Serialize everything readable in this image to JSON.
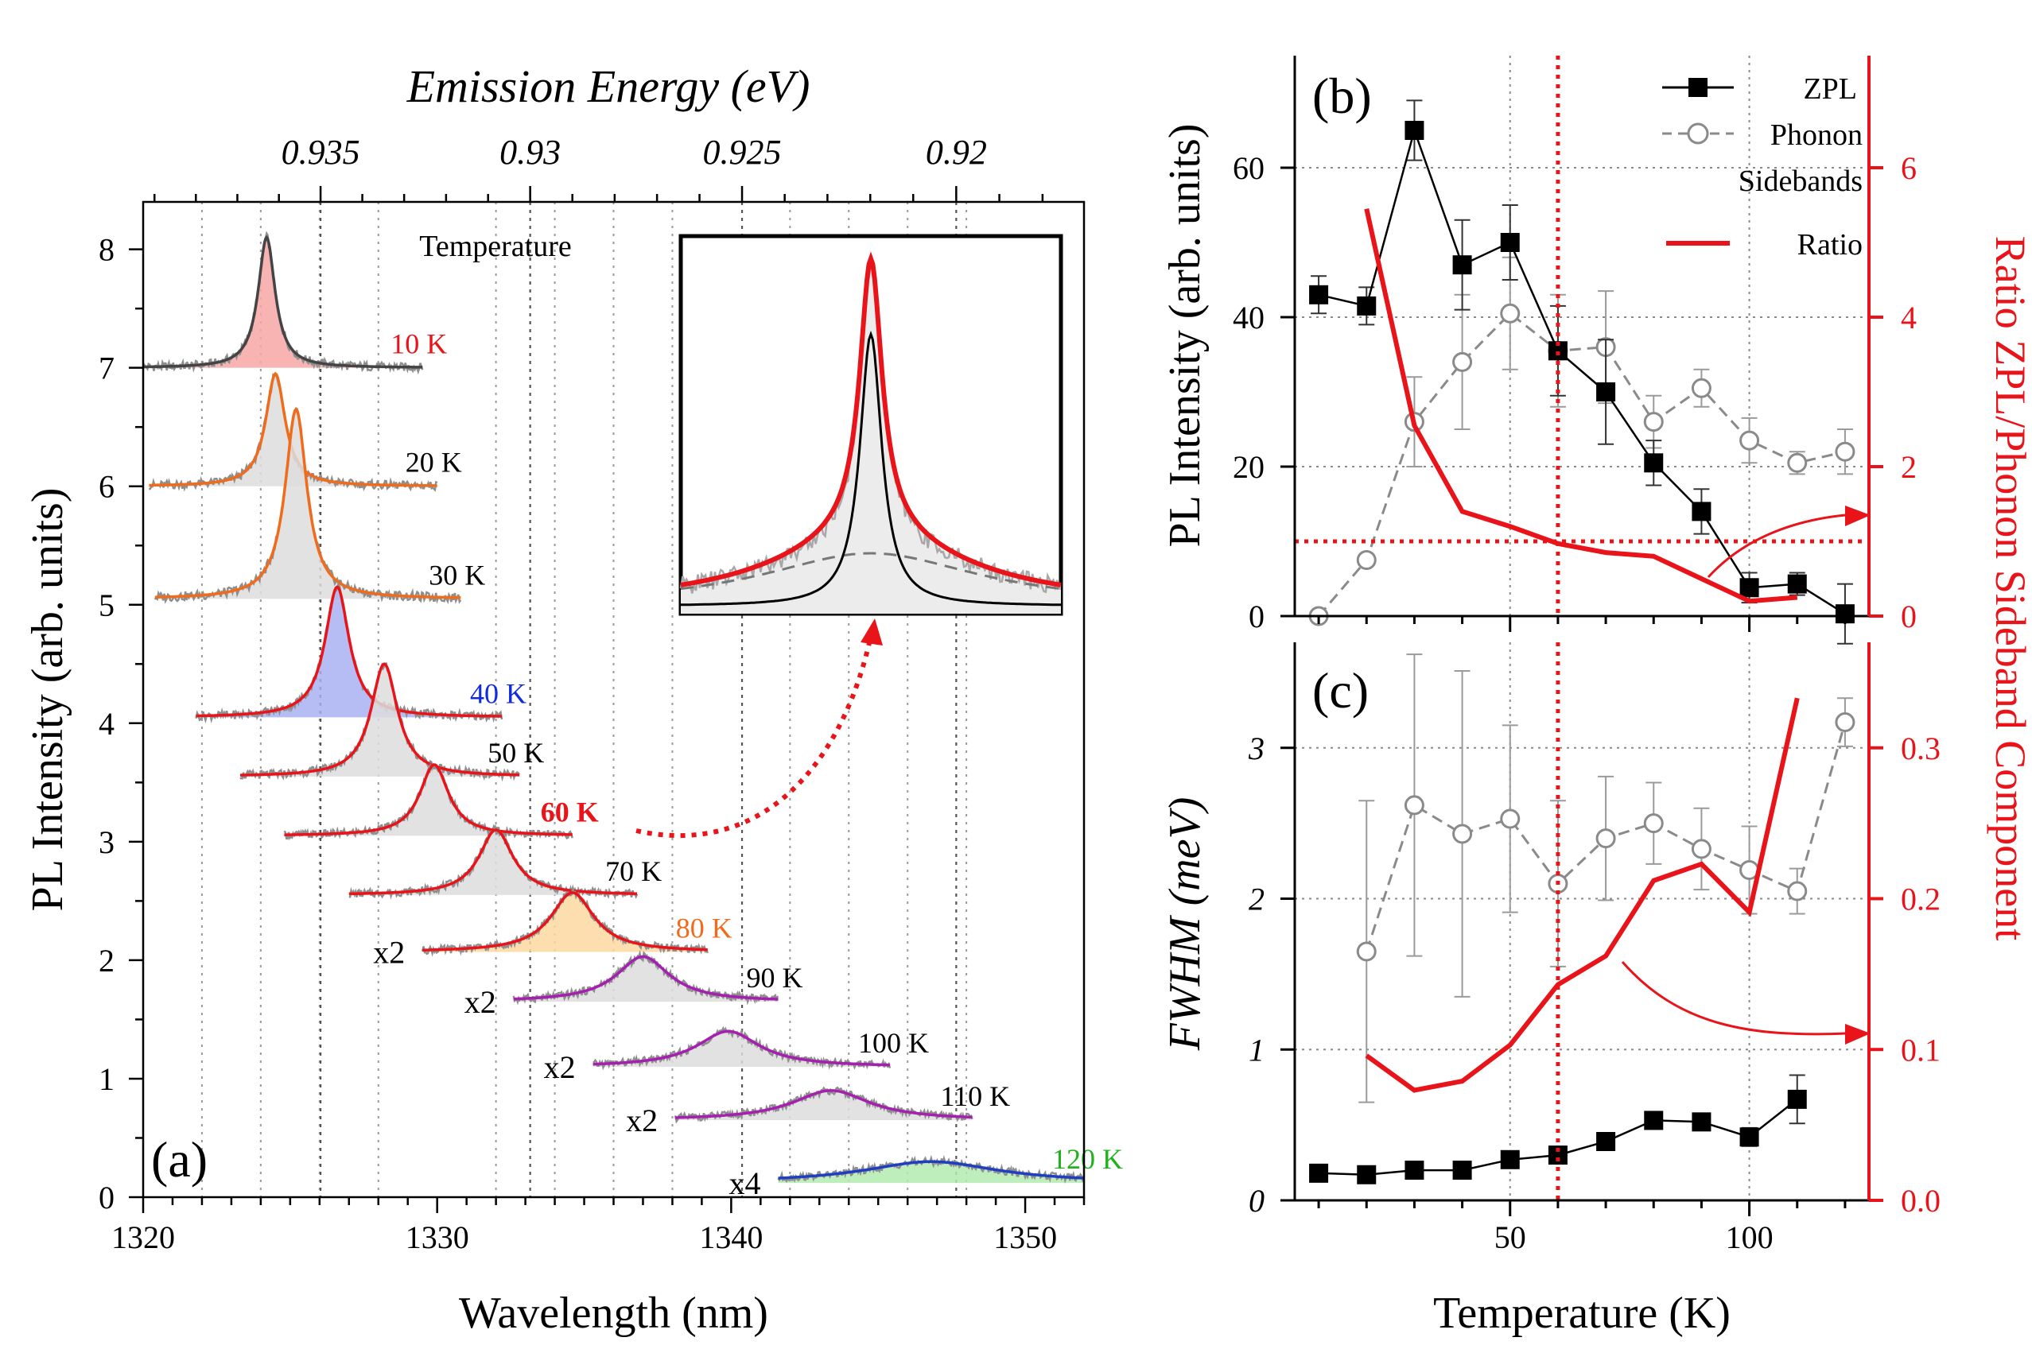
{
  "figure": {
    "note": "Three-panel photoluminescence figure"
  },
  "chart_data": [
    {
      "id": "a",
      "type": "line",
      "panel_label": "(a)",
      "xlabel": "Wavelength (nm)",
      "ylabel": "PL Intensity (arb. units)",
      "top_axis_label": "Emission Energy (eV)",
      "xlim": [
        1320,
        1352
      ],
      "ylim": [
        0,
        8.4
      ],
      "x_ticks": [
        1320,
        1330,
        1340,
        1350
      ],
      "y_ticks": [
        0,
        1,
        2,
        3,
        4,
        5,
        6,
        7,
        8
      ],
      "top_ticks": [
        "0.935",
        "0.93",
        "0.925",
        "0.92"
      ],
      "top_tick_values": [
        0.935,
        0.93,
        0.925,
        0.92
      ],
      "legend_title": "Temperature",
      "spectra": [
        {
          "label": "10 K",
          "scale": "",
          "baseline": 7.0,
          "center": 1324.2,
          "amplitude": 1.1,
          "width": 0.35,
          "x_start": 1320,
          "x_end": 1329.5,
          "color": "#444444",
          "label_color": "#e8141a",
          "fill": "#f6a7a4"
        },
        {
          "label": "20 K",
          "scale": "",
          "baseline": 6.0,
          "center": 1324.5,
          "amplitude": 0.95,
          "width": 0.4,
          "x_start": 1320.2,
          "x_end": 1330,
          "color": "#ef6c1d",
          "label_color": "#000000",
          "fill": "#dddddd"
        },
        {
          "label": "30 K",
          "scale": "",
          "baseline": 5.05,
          "center": 1325.2,
          "amplitude": 1.6,
          "width": 0.45,
          "x_start": 1320.4,
          "x_end": 1330.8,
          "color": "#ef6c1d",
          "label_color": "#000000",
          "fill": "#dddddd"
        },
        {
          "label": "40 K",
          "scale": "",
          "baseline": 4.05,
          "center": 1326.6,
          "amplitude": 1.1,
          "width": 0.5,
          "x_start": 1321.8,
          "x_end": 1332.2,
          "color": "#e8141a",
          "label_color": "#0f2adf",
          "fill": "#a9b2f3"
        },
        {
          "label": "50 K",
          "scale": "",
          "baseline": 3.55,
          "center": 1328.2,
          "amplitude": 0.95,
          "width": 0.55,
          "x_start": 1323.3,
          "x_end": 1332.8,
          "color": "#e8141a",
          "label_color": "#000000",
          "fill": "#dddddd"
        },
        {
          "label": "60 K",
          "scale": "",
          "baseline": 3.05,
          "center": 1329.9,
          "amplitude": 0.6,
          "width": 0.6,
          "x_start": 1324.8,
          "x_end": 1334.6,
          "color": "#e8141a",
          "label_color": "#e8141a",
          "fill": "#dddddd",
          "bold": true
        },
        {
          "label": "70 K",
          "scale": "",
          "baseline": 2.55,
          "center": 1332.0,
          "amplitude": 0.55,
          "width": 0.7,
          "x_start": 1327.0,
          "x_end": 1336.8,
          "color": "#e8141a",
          "label_color": "#000000",
          "fill": "#dddddd"
        },
        {
          "label": "80 K",
          "scale": "x2",
          "baseline": 2.07,
          "center": 1334.6,
          "amplitude": 0.5,
          "width": 0.9,
          "x_start": 1329.5,
          "x_end": 1339.2,
          "color": "#e8141a",
          "label_color": "#ef6c1d",
          "fill": "#fbd8a1"
        },
        {
          "label": "90 K",
          "scale": "x2",
          "baseline": 1.65,
          "center": 1337.0,
          "amplitude": 0.38,
          "width": 1.1,
          "x_start": 1332.6,
          "x_end": 1341.6,
          "color": "#a620b0",
          "label_color": "#000000",
          "fill": "#dddddd"
        },
        {
          "label": "100 K",
          "scale": "x2",
          "baseline": 1.1,
          "center": 1339.9,
          "amplitude": 0.3,
          "width": 1.3,
          "x_start": 1335.3,
          "x_end": 1345.4,
          "color": "#a620b0",
          "label_color": "#000000",
          "fill": "#dddddd"
        },
        {
          "label": "110 K",
          "scale": "x2",
          "baseline": 0.65,
          "center": 1343.4,
          "amplitude": 0.25,
          "width": 1.6,
          "x_start": 1338.1,
          "x_end": 1348.2,
          "color": "#a620b0",
          "label_color": "#000000",
          "fill": "#dddddd"
        },
        {
          "label": "120 K",
          "scale": "x4",
          "baseline": 0.12,
          "center": 1346.8,
          "amplitude": 0.18,
          "width": 2.8,
          "x_start": 1341.6,
          "x_end": 1352,
          "color": "#1f3fc0",
          "label_color": "#21b11f",
          "fill": "#b3ebb0"
        }
      ]
    },
    {
      "id": "b",
      "type": "line",
      "panel_label": "(b)",
      "ylabel": "PL Intensity (arb. units)",
      "y2label": "Ratio ZPL/Phonon Sideband Component",
      "xlim": [
        5,
        125
      ],
      "ylim": [
        0,
        75
      ],
      "y2lim": [
        0,
        7.5
      ],
      "y_ticks": [
        0,
        20,
        40,
        60
      ],
      "y2_ticks": [
        0,
        2,
        4,
        6
      ],
      "legend": [
        "ZPL",
        "Phonon",
        "Sidebands",
        "Ratio"
      ],
      "series": [
        {
          "name": "ZPL",
          "x": [
            10,
            20,
            30,
            40,
            50,
            60,
            70,
            80,
            90,
            100,
            110,
            120
          ],
          "y": [
            43,
            41.5,
            65,
            47,
            50,
            35.5,
            30,
            20.5,
            14,
            3.8,
            4.3,
            0.3
          ],
          "err": [
            2.5,
            2.5,
            4,
            6,
            5,
            6,
            7,
            3,
            3,
            2,
            1.5,
            4
          ]
        },
        {
          "name": "Phonon Sidebands",
          "x": [
            10,
            20,
            30,
            40,
            50,
            60,
            70,
            80,
            90,
            100,
            110,
            120
          ],
          "y": [
            0,
            7.5,
            26,
            34,
            40.5,
            35.5,
            36,
            26,
            30.5,
            23.5,
            20.5,
            22
          ],
          "err": [
            0,
            0,
            6,
            9,
            7.5,
            7.5,
            7.5,
            3.5,
            2.5,
            3,
            1.5,
            3
          ]
        },
        {
          "name": "Ratio",
          "axis": "right",
          "x": [
            20,
            30,
            40,
            50,
            60,
            70,
            80,
            90,
            100,
            110
          ],
          "y": [
            5.45,
            2.55,
            1.4,
            1.2,
            0.97,
            0.85,
            0.8,
            0.5,
            0.2,
            0.25
          ]
        }
      ],
      "hline_right_value": 1.0,
      "vline_x": 60
    },
    {
      "id": "c",
      "type": "line",
      "panel_label": "(c)",
      "xlabel": "Temperature (K)",
      "ylabel": "FWHM (meV)",
      "xlim": [
        5,
        125
      ],
      "ylim": [
        0,
        3.7
      ],
      "y2lim": [
        0,
        0.37
      ],
      "x_ticks": [
        50,
        100
      ],
      "y_ticks": [
        0,
        1,
        2,
        3
      ],
      "y2_ticks": [
        "0.0",
        "0.1",
        "0.2",
        "0.3"
      ],
      "y2_tick_values": [
        0,
        0.1,
        0.2,
        0.3
      ],
      "series": [
        {
          "name": "ZPL",
          "x": [
            10,
            20,
            30,
            40,
            50,
            60,
            70,
            80,
            90,
            100,
            110
          ],
          "y": [
            0.18,
            0.17,
            0.2,
            0.2,
            0.27,
            0.3,
            0.39,
            0.53,
            0.52,
            0.42,
            0.67
          ],
          "err": [
            0,
            0,
            0,
            0,
            0,
            0,
            0,
            0,
            0,
            0.06,
            0.16
          ]
        },
        {
          "name": "Phonon Sidebands",
          "x": [
            20,
            30,
            40,
            50,
            60,
            70,
            80,
            90,
            100,
            110,
            120
          ],
          "y": [
            1.65,
            2.62,
            2.43,
            2.53,
            2.1,
            2.4,
            2.5,
            2.33,
            2.19,
            2.05,
            3.17
          ],
          "err": [
            1.0,
            1.0,
            1.08,
            0.62,
            0.55,
            0.41,
            0.27,
            0.27,
            0.29,
            0.15,
            0.16
          ]
        },
        {
          "name": "Ratio",
          "axis": "right",
          "x": [
            20,
            30,
            40,
            50,
            60,
            70,
            80,
            90,
            100,
            110
          ],
          "y": [
            0.096,
            0.073,
            0.079,
            0.103,
            0.143,
            0.162,
            0.212,
            0.223,
            0.191,
            0.333
          ]
        }
      ],
      "vline_x": 60
    }
  ],
  "colors": {
    "red": "#e8141a",
    "grey": "#8a8a8a",
    "black": "#000000"
  }
}
